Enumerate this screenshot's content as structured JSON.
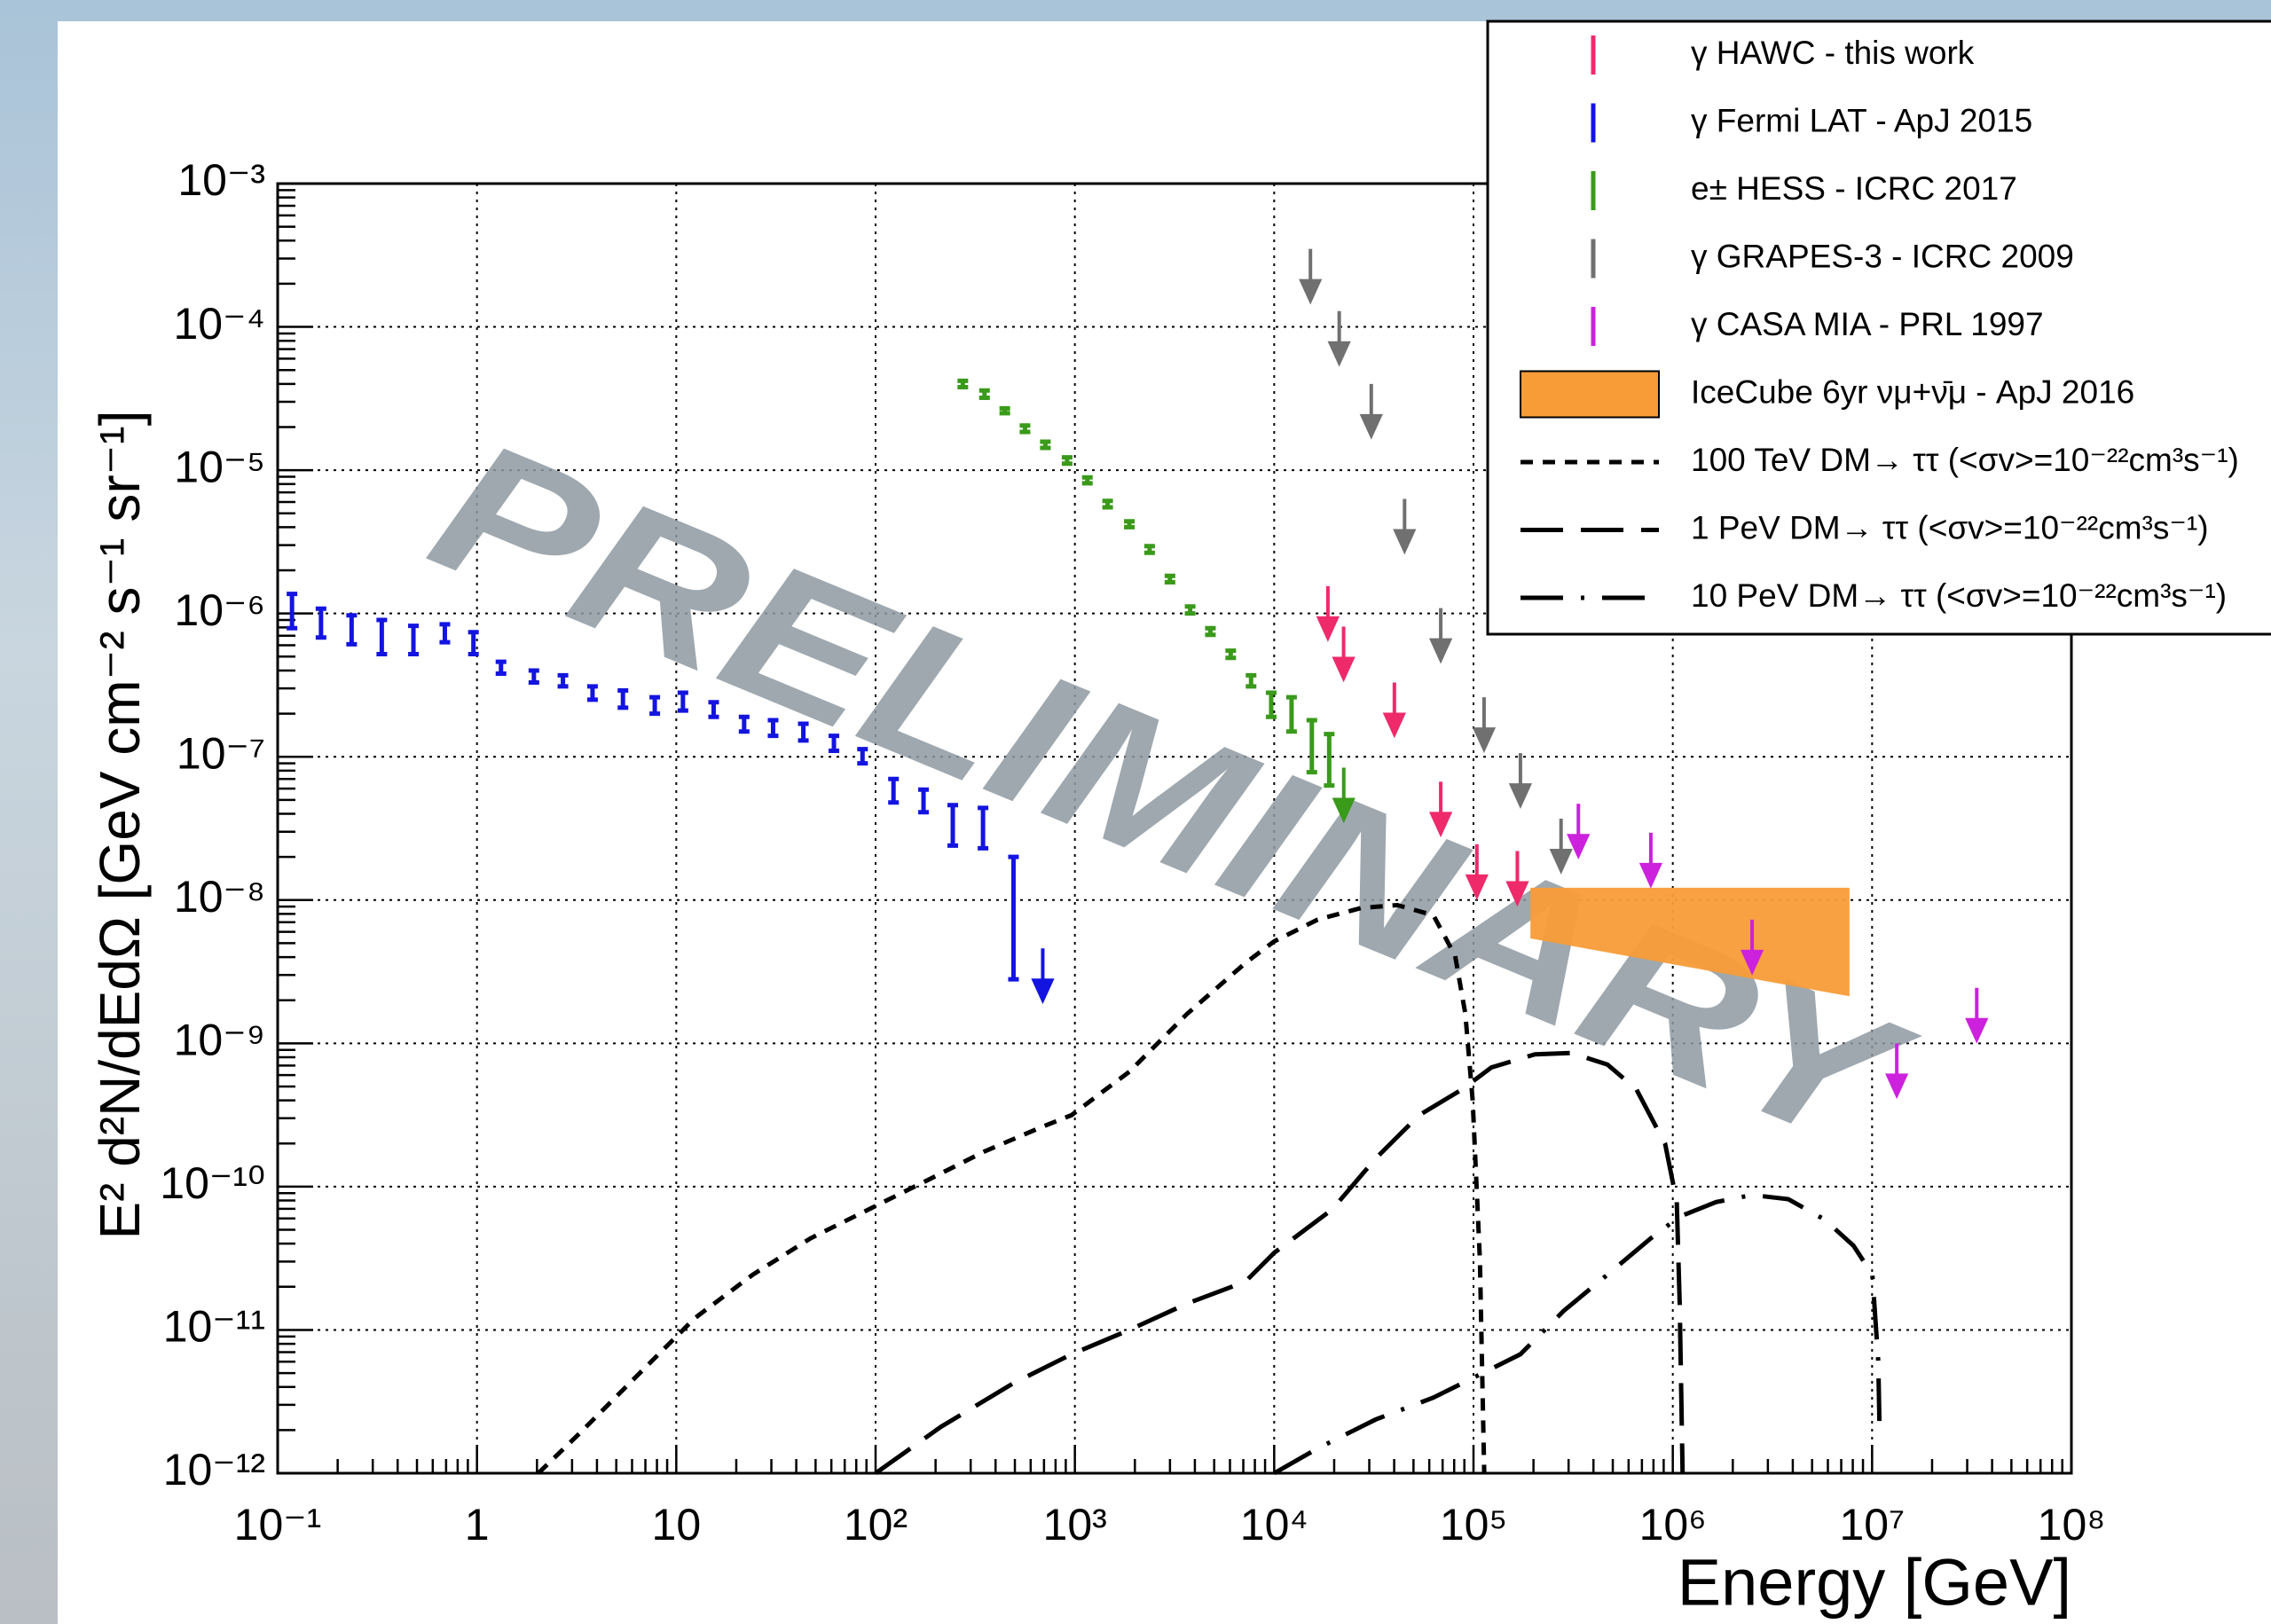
{
  "chart_data": {
    "type": "scatter",
    "xlabel": "Energy [GeV]",
    "ylabel": "E² d²N/dEdΩ [GeV cm⁻² s⁻¹ sr⁻¹]",
    "watermark": "PRELIMINARY",
    "xscale": "log",
    "yscale": "log",
    "xlim": [
      0.1,
      100000000
    ],
    "ylim": [
      1e-12,
      0.001
    ],
    "xticks": [
      {
        "value": 0.1,
        "label": "10⁻¹"
      },
      1,
      10,
      {
        "value": 100,
        "label": "10²"
      },
      {
        "value": 1000,
        "label": "10³"
      },
      {
        "value": 10000,
        "label": "10⁴"
      },
      {
        "value": 100000,
        "label": "10⁵"
      },
      {
        "value": 1000000,
        "label": "10⁶"
      },
      {
        "value": 10000000,
        "label": "10⁷"
      },
      {
        "value": 100000000,
        "label": "10⁸"
      }
    ],
    "yticks": [
      {
        "value": 1e-12,
        "label": "10⁻¹²"
      },
      {
        "value": 1e-11,
        "label": "10⁻¹¹"
      },
      {
        "value": 1e-10,
        "label": "10⁻¹⁰"
      },
      {
        "value": 1e-09,
        "label": "10⁻⁹"
      },
      {
        "value": 1e-08,
        "label": "10⁻⁸"
      },
      {
        "value": 1e-07,
        "label": "10⁻⁷"
      },
      {
        "value": 1e-06,
        "label": "10⁻⁶"
      },
      {
        "value": 1e-05,
        "label": "10⁻⁵"
      },
      {
        "value": 0.0001,
        "label": "10⁻⁴"
      },
      {
        "value": 0.001,
        "label": "10⁻³"
      }
    ],
    "grid": true,
    "legend": "upper right",
    "series": [
      {
        "name": "γ HAWC - this work",
        "color": "#ee2a6b",
        "style": "upper_limit",
        "x": [
          18600,
          22300,
          40100,
          68500,
          104000,
          166000
        ],
        "values": [
          1.55e-06,
          8.1e-07,
          3.3e-07,
          6.7e-08,
          2.45e-08,
          2.2e-08
        ]
      },
      {
        "name": "γ Fermi LAT - ApJ 2015",
        "color": "#1414e0",
        "style": "errorbar",
        "x": [
          0.118,
          0.165,
          0.235,
          0.333,
          0.48,
          0.69,
          0.96,
          1.32,
          1.93,
          2.7,
          3.8,
          5.4,
          7.8,
          10.8,
          15.4,
          21.9,
          30.6,
          43.4,
          61.8,
          86,
          123,
          174,
          244,
          346,
          492
        ],
        "values": [
          1.04e-06,
          8.6e-07,
          7.7e-07,
          6.8e-07,
          6.5e-07,
          7.3e-07,
          6.2e-07,
          4.2e-07,
          3.6e-07,
          3.4e-07,
          2.8e-07,
          2.5e-07,
          2.3e-07,
          2.4e-07,
          2.1e-07,
          1.7e-07,
          1.6e-07,
          1.5e-07,
          1.25e-07,
          1.01e-07,
          5.8e-08,
          4.9e-08,
          3.3e-08,
          3.2e-08,
          7.5e-09
        ],
        "low": [
          7.9e-07,
          6.8e-07,
          6.1e-07,
          5.2e-07,
          5.2e-07,
          6.3e-07,
          5.2e-07,
          3.8e-07,
          3.3e-07,
          3.1e-07,
          2.5e-07,
          2.2e-07,
          2e-07,
          2.1e-07,
          1.9e-07,
          1.5e-07,
          1.4e-07,
          1.3e-07,
          1.1e-07,
          9e-08,
          4.8e-08,
          4.1e-08,
          2.4e-08,
          2.3e-08,
          2.8e-09
        ],
        "high": [
          1.37e-06,
          1.08e-06,
          9.7e-07,
          9e-07,
          8.2e-07,
          8.4e-07,
          7.4e-07,
          4.6e-07,
          4e-07,
          3.7e-07,
          3.1e-07,
          2.9e-07,
          2.6e-07,
          2.8e-07,
          2.4e-07,
          1.9e-07,
          1.8e-07,
          1.7e-07,
          1.4e-07,
          1.13e-07,
          7e-08,
          5.9e-08,
          4.6e-08,
          4.4e-08,
          2e-08
        ],
        "ul_x": [
          690
        ],
        "ul_values": [
          4.6e-09
        ]
      },
      {
        "name": "e± HESS - ICRC 2017",
        "color": "#3a9a1a",
        "style": "errorbar",
        "x": [
          274,
          352,
          445,
          562,
          711,
          914,
          1155,
          1460,
          1876,
          2371,
          3000,
          3787,
          4786,
          6053,
          7656,
          9660,
          12220,
          15450,
          18880
        ],
        "values": [
          4e-05,
          3.4e-05,
          2.6e-05,
          1.95e-05,
          1.5e-05,
          1.17e-05,
          8.5e-06,
          5.8e-06,
          4.2e-06,
          2.8e-06,
          1.74e-06,
          1.06e-06,
          7.5e-07,
          5.2e-07,
          3.4e-07,
          2.3e-07,
          2e-07,
          1.19e-07,
          9.5e-08
        ],
        "low": [
          3.8e-05,
          3.2e-05,
          2.5e-05,
          1.85e-05,
          1.43e-05,
          1.11e-05,
          8.1e-06,
          5.5e-06,
          4e-06,
          2.65e-06,
          1.65e-06,
          1e-06,
          7.1e-07,
          4.9e-07,
          3.1e-07,
          1.9e-07,
          1.5e-07,
          7.8e-08,
          6.3e-08
        ],
        "high": [
          4.2e-05,
          3.6e-05,
          2.7e-05,
          2.05e-05,
          1.58e-05,
          1.23e-05,
          8.9e-06,
          6.1e-06,
          4.4e-06,
          2.95e-06,
          1.83e-06,
          1.12e-06,
          7.9e-07,
          5.5e-07,
          3.7e-07,
          2.8e-07,
          2.6e-07,
          1.8e-07,
          1.44e-07
        ],
        "ul_x": [
          22340
        ],
        "ul_values": [
          8.4e-08
        ]
      },
      {
        "name": "γ GRAPES-3 - ICRC 2009",
        "color": "#707070",
        "style": "upper_limit",
        "x": [
          15200,
          21200,
          30700,
          45100,
          68500,
          113000,
          172000,
          275000
        ],
        "values": [
          0.00035,
          0.000129,
          4e-05,
          6.3e-06,
          1.09e-06,
          2.6e-07,
          1.06e-07,
          3.7e-08
        ]
      },
      {
        "name": "γ CASA MIA - PRL 1997",
        "color": "#cc22dd",
        "style": "upper_limit",
        "x": [
          336000,
          776000,
          2500000,
          13300000,
          33500000
        ],
        "values": [
          4.7e-08,
          2.95e-08,
          7.3e-09,
          1e-09,
          2.44e-09
        ]
      },
      {
        "name": "IceCube 6yr νμ+ν̄μ - ApJ 2016",
        "color": "#f89c38",
        "style": "band",
        "x": [
          193000,
          7700000
        ],
        "upper": [
          1.22e-08,
          1.22e-08
        ],
        "lower": [
          5.4e-09,
          2.13e-09
        ]
      },
      {
        "name": "100 TeV DM→ ττ (<σv>=10⁻²²cm³s⁻¹)",
        "color": "#000000",
        "style": "line",
        "dash": "short",
        "x": [
          2.03,
          3.25,
          6.34,
          12.4,
          24.2,
          47.2,
          92.3,
          180,
          352,
          687,
          961,
          1876,
          3664,
          7161,
          10000,
          16520,
          27290,
          41500,
          62950,
          80910,
          91000,
          99080,
          107700,
          113200
        ],
        "values": [
          1e-12,
          1.88e-12,
          4.77e-12,
          1.21e-11,
          2.43e-11,
          4.36e-11,
          6.93e-11,
          1.1e-10,
          1.76e-10,
          2.62e-10,
          3.15e-10,
          6.34e-10,
          1.61e-09,
          3.63e-09,
          5.15e-09,
          7.3e-09,
          8.8e-09,
          9.22e-09,
          7.83e-09,
          4.08e-09,
          1.61e-09,
          3.98e-10,
          3.07e-11,
          1e-12
        ]
      },
      {
        "name": "1 PeV DM→ ττ (<σv>=10⁻²²cm³s⁻¹)",
        "color": "#000000",
        "style": "line",
        "dash": "long",
        "x": [
          100,
          213,
          492,
          961,
          1876,
          3664,
          7161,
          10000,
          19540,
          32280,
          53330,
          88100,
          123000,
          203200,
          309000,
          469900,
          656000,
          916000,
          1047000,
          1083000,
          1120000
        ],
        "values": [
          1e-12,
          2.11e-12,
          4.25e-12,
          6.76e-12,
          1e-11,
          1.53e-11,
          2.17e-11,
          3.45e-11,
          6.93e-11,
          1.57e-10,
          3.15e-10,
          4.79e-10,
          6.79e-10,
          8.38e-10,
          8.57e-10,
          7.11e-10,
          4.79e-10,
          1.98e-10,
          7.8e-11,
          1.53e-11,
          1e-12
        ]
      },
      {
        "name": "10 PeV DM→ ττ (<σv>=10⁻²²cm³s⁻¹)",
        "color": "#000000",
        "style": "line",
        "dash": "longdot",
        "x": [
          10000,
          16520,
          32280,
          62950,
          123000,
          171800,
          283800,
          469900,
          776000,
          1083000,
          1648000,
          2500000,
          3800000,
          5780000,
          8070000,
          10030000,
          10740000,
          10910000
        ],
        "values": [
          1e-12,
          1.49e-12,
          2.37e-12,
          3.37e-12,
          5.36e-12,
          6.76e-12,
          1.36e-11,
          2.43e-11,
          4.36e-11,
          6.18e-11,
          7.8e-11,
          8.75e-11,
          8.17e-11,
          5.89e-11,
          3.87e-11,
          2.43e-11,
          6.03e-12,
          1.88e-12
        ]
      }
    ]
  }
}
